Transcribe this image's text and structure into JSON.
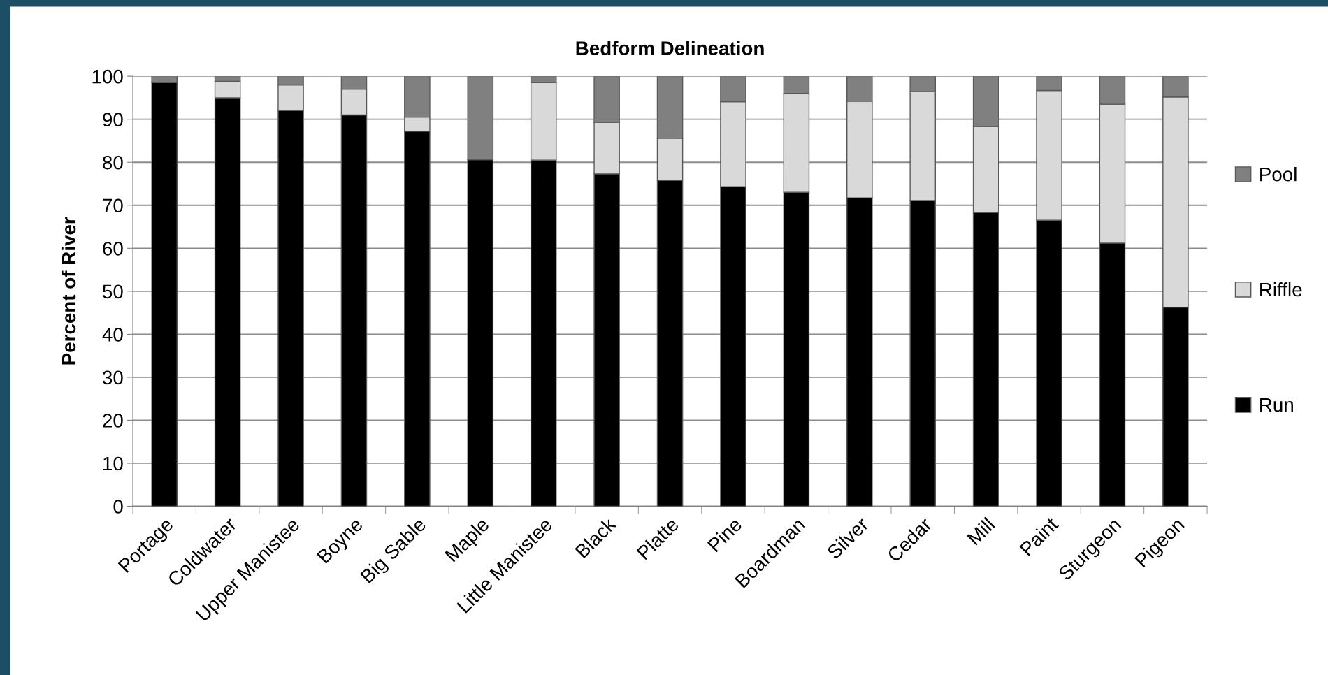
{
  "chart_data": {
    "type": "bar",
    "title": "Bedform Delineation",
    "ylabel": "Percent of River",
    "categories": [
      "Portage",
      "Coldwater",
      "Upper Manistee",
      "Boyne",
      "Big Sable",
      "Maple",
      "Little Manistee",
      "Black",
      "Platte",
      "Pine",
      "Boardman",
      "Silver",
      "Cedar",
      "Mill",
      "Paint",
      "Sturgeon",
      "Pigeon"
    ],
    "stacked": true,
    "series": [
      {
        "name": "Run",
        "color": "#000000",
        "values": [
          98.5,
          95,
          92,
          91,
          87.2,
          80.6,
          80.5,
          77.3,
          75.8,
          74.3,
          73,
          71.7,
          71.1,
          68.3,
          66.5,
          61.2,
          46.3
        ]
      },
      {
        "name": "Riffle",
        "color": "#d9d9d9",
        "values": [
          null,
          3.8,
          6,
          6,
          3.3,
          null,
          18,
          12,
          9.8,
          19.8,
          23,
          22.5,
          25.3,
          20,
          30.2,
          32.3,
          48.9
        ]
      },
      {
        "name": "Pool",
        "color": "#808080",
        "values": [
          1.5,
          1.2,
          2,
          3,
          9.5,
          19.4,
          1.5,
          10.7,
          14.4,
          5.9,
          4,
          5.8,
          3.6,
          11.7,
          3.3,
          6.5,
          4.8
        ]
      }
    ],
    "ylim": [
      0,
      100
    ],
    "yticks": [
      0,
      10,
      20,
      30,
      40,
      50,
      60,
      70,
      80,
      90,
      100
    ],
    "grid": "y",
    "legend": "right"
  }
}
